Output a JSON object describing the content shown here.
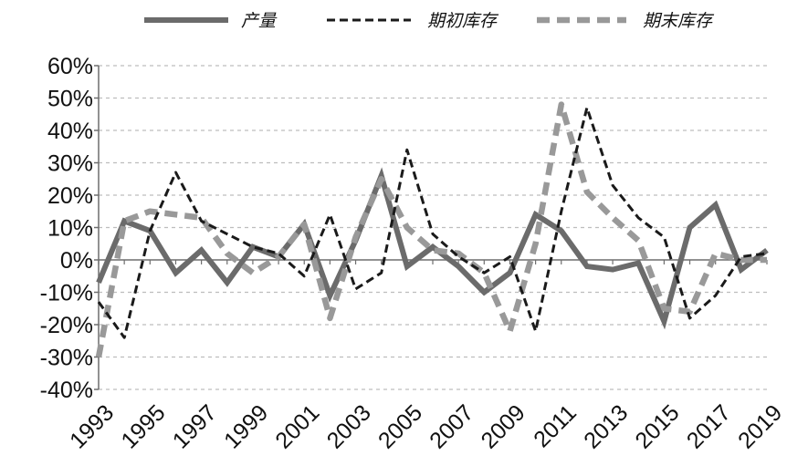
{
  "chart_data": {
    "type": "line",
    "title": "",
    "xlabel": "",
    "ylabel": "",
    "x": [
      1993,
      1994,
      1995,
      1996,
      1997,
      1998,
      1999,
      2000,
      2001,
      2002,
      2003,
      2004,
      2005,
      2006,
      2007,
      2008,
      2009,
      2010,
      2011,
      2012,
      2013,
      2014,
      2015,
      2016,
      2017,
      2018,
      2019
    ],
    "x_tick_labels": [
      "1993",
      "1995",
      "1997",
      "1999",
      "2001",
      "2003",
      "2005",
      "2007",
      "2009",
      "2011",
      "2013",
      "2015",
      "2017",
      "2019"
    ],
    "y_tick_labels": [
      "60%",
      "50%",
      "40%",
      "30%",
      "20%",
      "10%",
      "0%",
      "-10%",
      "-20%",
      "-30%",
      "-40%"
    ],
    "ylim": [
      -40,
      60
    ],
    "y_unit": "%",
    "grid": "horizontal dashed",
    "legend_position": "top",
    "series": [
      {
        "name": "产量",
        "style": "solid",
        "color": "#6b6b6b",
        "values": [
          -7,
          12,
          9,
          -4,
          3,
          -7,
          4,
          1,
          11,
          -11,
          6,
          26,
          -2,
          4,
          -2,
          -10,
          -4,
          14,
          9,
          -2,
          -3,
          -1,
          -19,
          10,
          17,
          -3,
          3
        ]
      },
      {
        "name": "期初库存",
        "style": "dashed",
        "color": "#1a1a1a",
        "values": [
          -13,
          -24,
          9,
          27,
          12,
          8,
          4,
          2,
          -5,
          14,
          -9,
          -4,
          34,
          8,
          1,
          -4,
          1,
          -22,
          15,
          47,
          23,
          13,
          7,
          -18,
          -11,
          1,
          2
        ]
      },
      {
        "name": "期末库存",
        "style": "dashed",
        "color": "#999999",
        "values": [
          -30,
          12,
          15,
          14,
          13,
          2,
          -4,
          1,
          11,
          -18,
          7,
          25,
          10,
          3,
          2,
          -4,
          -22,
          5,
          48,
          21,
          13,
          6,
          -15,
          -16,
          2,
          0,
          0
        ]
      }
    ]
  }
}
